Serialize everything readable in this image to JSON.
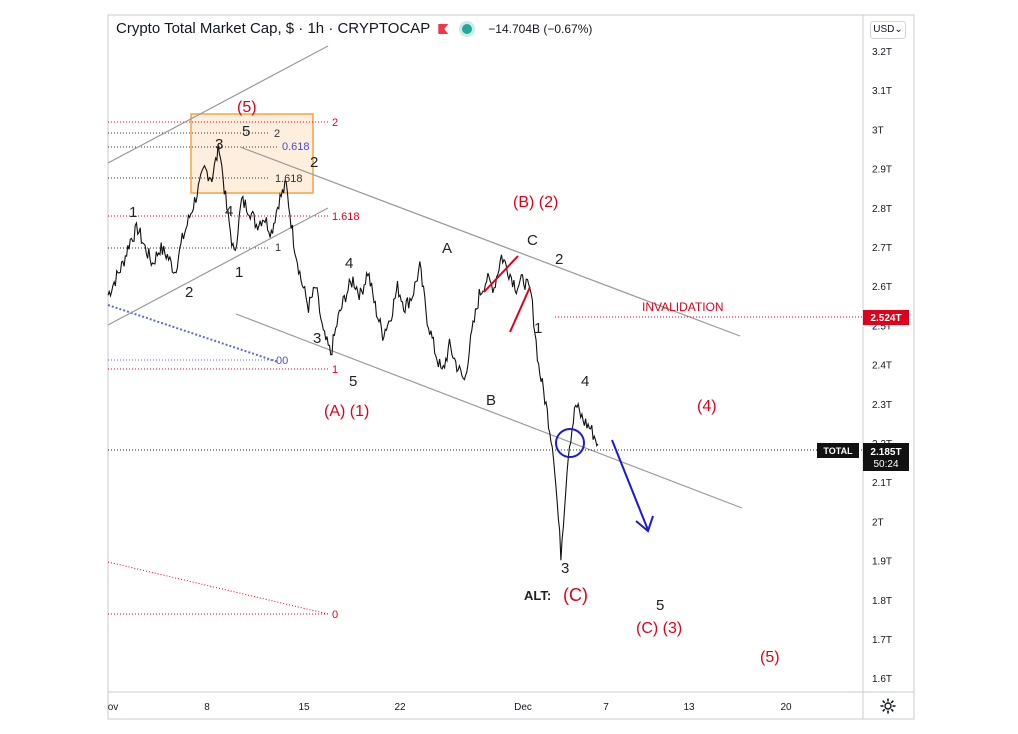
{
  "header": {
    "symbol": "Crypto Total Market Cap, $ · 1h · CRYPTOCAP",
    "change": "−14.704B (−0.67%)",
    "flag_icon": "flag-icon",
    "status_icon": "live-dot-icon"
  },
  "currency_button": "USD⌄",
  "settings_icon": "gear-icon",
  "colors": {
    "red": "#e0001b",
    "blue": "#1b1ad6",
    "fib_box": "#f7a440",
    "channel": "#999999"
  },
  "price_axis": {
    "labels": [
      "3.2T",
      "3.1T",
      "3T",
      "2.9T",
      "2.8T",
      "2.7T",
      "2.6T",
      "2.5T",
      "2.4T",
      "2.3T",
      "2.2T",
      "2.1T",
      "2T",
      "1.9T",
      "1.8T",
      "1.7T",
      "1.6T"
    ],
    "values": [
      3.2,
      3.1,
      3.0,
      2.9,
      2.8,
      2.7,
      2.6,
      2.5,
      2.4,
      2.3,
      2.2,
      2.1,
      2.0,
      1.9,
      1.8,
      1.7,
      1.6
    ],
    "invalidation_tag": "2.524T",
    "invalidation_value": 2.524,
    "current_tag": "2.185T",
    "current_value": 2.185,
    "countdown": "50:24",
    "series_tag": "TOTAL"
  },
  "time_axis": {
    "labels": [
      "ov",
      "8",
      "15",
      "22",
      "Dec",
      "7",
      "13",
      "20"
    ]
  },
  "fib_labels": {
    "left_top_2": "2",
    "left_0618": "0.618",
    "left_1618": "1.618",
    "left_1": "1",
    "left_00": "00",
    "right_2": "2",
    "right_1618": "1.618",
    "right_1": "1",
    "right_0": "0"
  },
  "annotations": {
    "invalidation": "INVALIDATION",
    "alt": "ALT:"
  },
  "wave_labels": {
    "red": [
      "(5)",
      "(B) (2)",
      "(A) (1)",
      "(4)",
      "(C)",
      "(C) (3)",
      "(5)"
    ],
    "black": [
      "1",
      "2",
      "1",
      "3",
      "4",
      "5",
      "3",
      "5",
      "2",
      "4",
      "1",
      "2",
      "3",
      "4",
      "5",
      "A",
      "B",
      "C",
      "2",
      "1",
      "4",
      "3",
      "5"
    ]
  },
  "chart_data": {
    "type": "line",
    "title": "Crypto Total Market Cap, $ · 1h · CRYPTOCAP",
    "ylabel": "",
    "xlabel": "",
    "ylim": [
      1.58,
      3.25
    ],
    "x_ticks": [
      "ov",
      "8",
      "15",
      "22",
      "Dec",
      "7",
      "13",
      "20"
    ],
    "grid": false,
    "series": [
      {
        "values": [
          2.58,
          2.62,
          2.66,
          2.72,
          2.75,
          2.7,
          2.66,
          2.7,
          2.68,
          2.64,
          2.72,
          2.78,
          2.84,
          2.9,
          2.88,
          2.96,
          2.8,
          2.68,
          2.82,
          2.8,
          2.76,
          2.78,
          2.74,
          2.82,
          2.86,
          2.72,
          2.62,
          2.55,
          2.6,
          2.48,
          2.43,
          2.52,
          2.58,
          2.62,
          2.58,
          2.64,
          2.55,
          2.48,
          2.52,
          2.6,
          2.55,
          2.58,
          2.65,
          2.52,
          2.44,
          2.38,
          2.45,
          2.4,
          2.36,
          2.48,
          2.58,
          2.62,
          2.6,
          2.68,
          2.64,
          2.6,
          2.62,
          2.58,
          2.4,
          2.3,
          2.18,
          1.92,
          2.18,
          2.3,
          2.26,
          2.24,
          2.2
        ]
      }
    ]
  }
}
